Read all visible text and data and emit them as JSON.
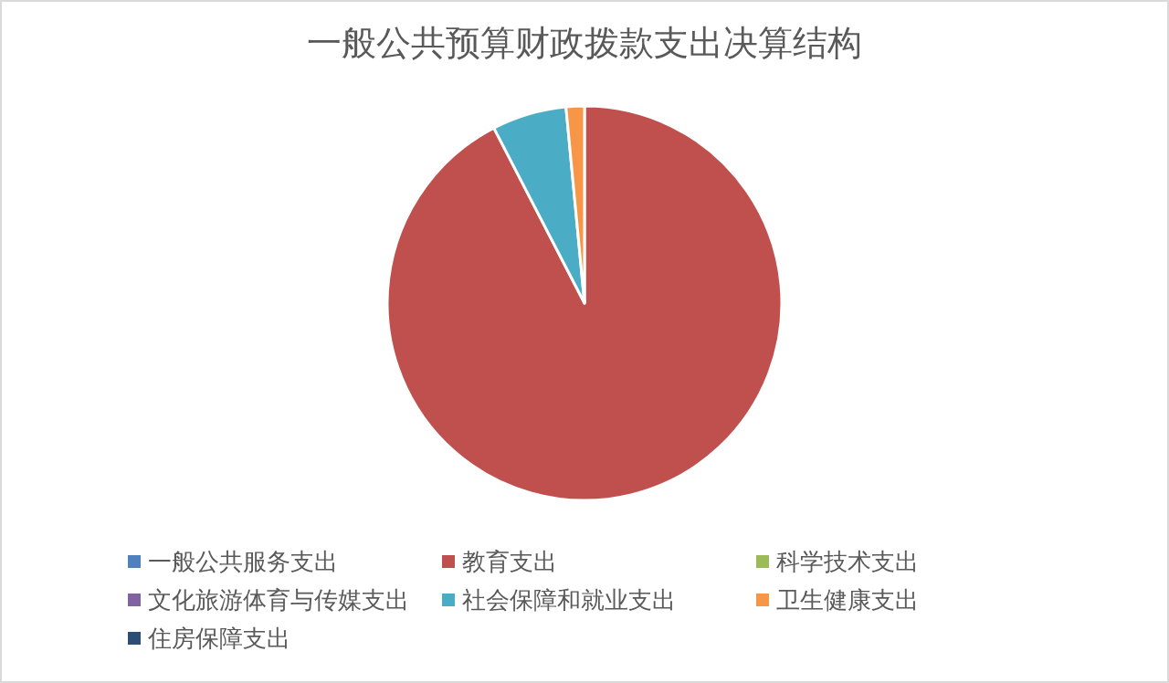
{
  "chart_data": {
    "type": "pie",
    "title": "一般公共预算财政拨款支出决算结构",
    "categories": [
      "一般公共服务支出",
      "教育支出",
      "科学技术支出",
      "文化旅游体育与传媒支出",
      "社会保障和就业支出",
      "卫生健康支出",
      "住房保障支出"
    ],
    "values": [
      0,
      92.4,
      0,
      0,
      6.1,
      1.5,
      0
    ],
    "colors": [
      "#4f81bd",
      "#c0504d",
      "#9bbb59",
      "#8064a2",
      "#4bacc6",
      "#f79646",
      "#2c4d75"
    ],
    "legend": "bottom"
  }
}
